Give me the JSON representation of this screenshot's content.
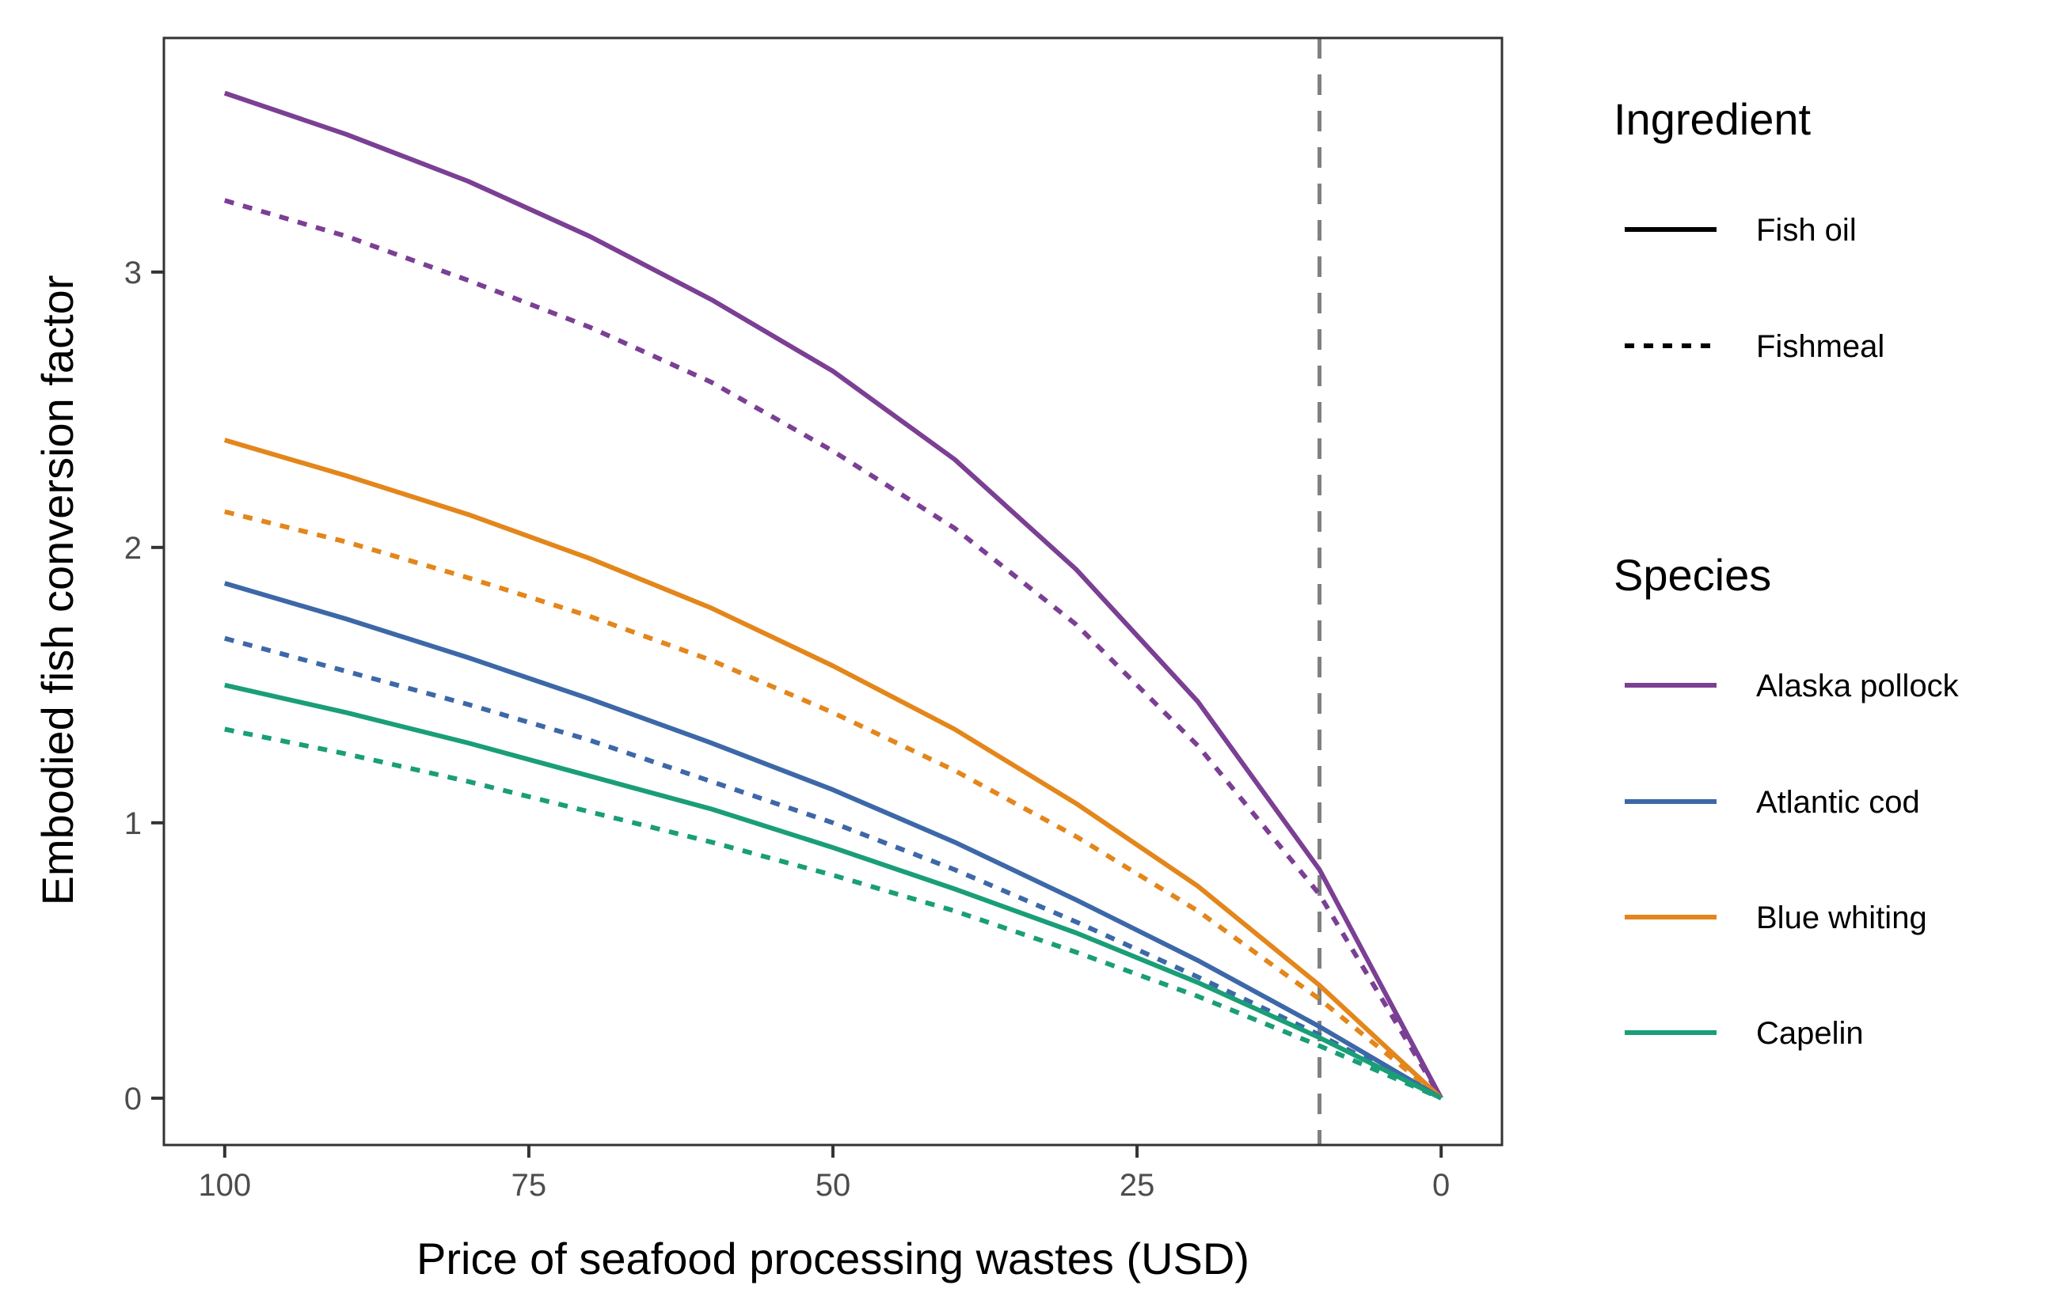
{
  "chart_data": {
    "type": "line",
    "xlabel": "Price of seafood processing wastes (USD)",
    "ylabel": "Embodied fish conversion factor",
    "x": [
      100,
      90,
      80,
      70,
      60,
      50,
      40,
      30,
      20,
      10,
      0
    ],
    "xlim": [
      105,
      -5
    ],
    "x_reversed": true,
    "xticks": [
      100,
      75,
      50,
      25,
      0
    ],
    "ylim": [
      -0.17,
      3.85
    ],
    "yticks": [
      0,
      1,
      2,
      3
    ],
    "grid": false,
    "reference_line": {
      "x": 10,
      "style": "dashed",
      "color": "#808080"
    },
    "legend_position": "right",
    "legend": {
      "ingredient_title": "Ingredient",
      "ingredients": [
        {
          "label": "Fish oil",
          "dash": "solid"
        },
        {
          "label": "Fishmeal",
          "dash": "dotted"
        }
      ],
      "species_title": "Species",
      "species": [
        {
          "label": "Alaska pollock",
          "color": "#7b3f94"
        },
        {
          "label": "Atlantic cod",
          "color": "#3d68a8"
        },
        {
          "label": "Blue whiting",
          "color": "#e3861b"
        },
        {
          "label": "Capelin",
          "color": "#1a9e77"
        }
      ]
    },
    "series": [
      {
        "species": "Alaska pollock",
        "ingredient": "Fish oil",
        "color": "#7b3f94",
        "dash": "solid",
        "values": [
          3.65,
          3.5,
          3.33,
          3.13,
          2.9,
          2.64,
          2.32,
          1.92,
          1.44,
          0.83,
          0.0
        ]
      },
      {
        "species": "Alaska pollock",
        "ingredient": "Fishmeal",
        "color": "#7b3f94",
        "dash": "dotted",
        "values": [
          3.26,
          3.13,
          2.97,
          2.8,
          2.6,
          2.35,
          2.07,
          1.72,
          1.28,
          0.74,
          0.0
        ]
      },
      {
        "species": "Blue whiting",
        "ingredient": "Fish oil",
        "color": "#e3861b",
        "dash": "solid",
        "values": [
          2.39,
          2.26,
          2.12,
          1.96,
          1.78,
          1.57,
          1.34,
          1.07,
          0.77,
          0.41,
          0.0
        ]
      },
      {
        "species": "Blue whiting",
        "ingredient": "Fishmeal",
        "color": "#e3861b",
        "dash": "dotted",
        "values": [
          2.13,
          2.02,
          1.89,
          1.75,
          1.59,
          1.4,
          1.19,
          0.95,
          0.68,
          0.36,
          0.0
        ]
      },
      {
        "species": "Atlantic cod",
        "ingredient": "Fish oil",
        "color": "#3d68a8",
        "dash": "solid",
        "values": [
          1.87,
          1.74,
          1.6,
          1.45,
          1.29,
          1.12,
          0.93,
          0.72,
          0.5,
          0.26,
          0.0
        ]
      },
      {
        "species": "Atlantic cod",
        "ingredient": "Fishmeal",
        "color": "#3d68a8",
        "dash": "dotted",
        "values": [
          1.67,
          1.55,
          1.43,
          1.3,
          1.15,
          1.0,
          0.83,
          0.64,
          0.44,
          0.23,
          0.0
        ]
      },
      {
        "species": "Capelin",
        "ingredient": "Fish oil",
        "color": "#1a9e77",
        "dash": "solid",
        "values": [
          1.5,
          1.4,
          1.29,
          1.17,
          1.05,
          0.91,
          0.76,
          0.6,
          0.42,
          0.22,
          0.0
        ]
      },
      {
        "species": "Capelin",
        "ingredient": "Fishmeal",
        "color": "#1a9e77",
        "dash": "dotted",
        "values": [
          1.34,
          1.25,
          1.15,
          1.04,
          0.93,
          0.81,
          0.68,
          0.53,
          0.37,
          0.19,
          0.0
        ]
      }
    ]
  }
}
